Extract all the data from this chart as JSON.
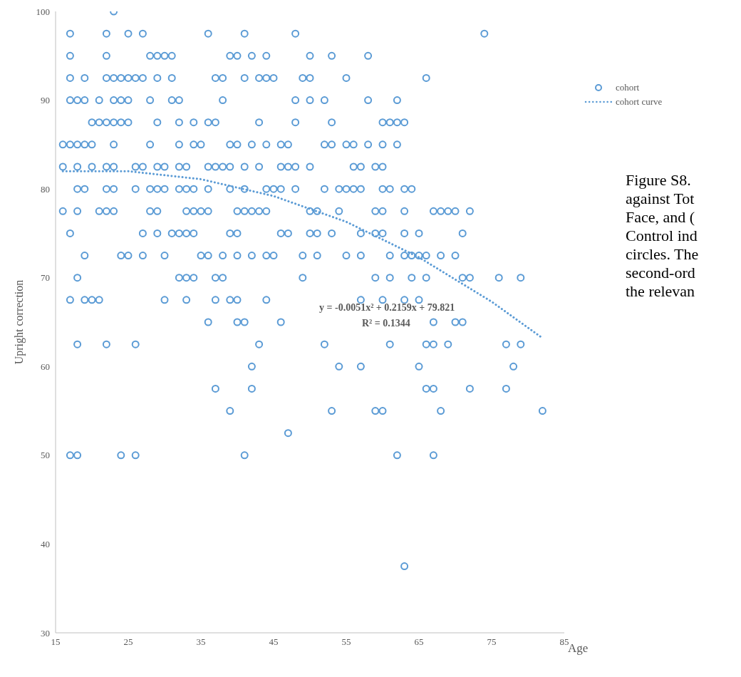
{
  "chart_data": {
    "type": "scatter",
    "xlabel": "Age",
    "ylabel": "Upright correction",
    "xlim": [
      15,
      85
    ],
    "xticks": [
      15,
      25,
      35,
      45,
      55,
      65,
      75,
      85
    ],
    "ylim": [
      30,
      100
    ],
    "yticks": [
      30,
      40,
      50,
      60,
      70,
      80,
      90,
      100
    ],
    "legend": "top right",
    "line_style": "dotted",
    "series": [
      {
        "name": "cohort",
        "marker": "circle",
        "color": "#5b9bd5",
        "x": [
          23,
          17,
          22,
          25,
          27,
          36,
          41,
          48,
          74,
          17,
          22,
          28,
          29,
          30,
          31,
          39,
          40,
          42,
          44,
          50,
          53,
          58,
          17,
          19,
          22,
          23,
          24,
          25,
          26,
          27,
          29,
          31,
          37,
          38,
          41,
          43,
          44,
          45,
          49,
          50,
          55,
          66,
          17,
          18,
          19,
          21,
          23,
          24,
          25,
          28,
          31,
          32,
          38,
          48,
          50,
          52,
          58,
          62,
          20,
          21,
          22,
          23,
          24,
          25,
          29,
          32,
          34,
          36,
          37,
          43,
          48,
          53,
          60,
          61,
          62,
          63,
          16,
          17,
          18,
          19,
          20,
          23,
          28,
          32,
          34,
          35,
          39,
          40,
          42,
          44,
          46,
          47,
          52,
          53,
          55,
          56,
          58,
          60,
          62,
          16,
          18,
          20,
          22,
          23,
          26,
          27,
          29,
          30,
          32,
          33,
          36,
          37,
          38,
          39,
          41,
          43,
          46,
          47,
          48,
          50,
          56,
          57,
          59,
          60,
          18,
          19,
          22,
          23,
          26,
          28,
          29,
          30,
          32,
          33,
          34,
          36,
          39,
          41,
          44,
          45,
          46,
          48,
          52,
          54,
          55,
          56,
          57,
          60,
          61,
          63,
          64,
          16,
          18,
          21,
          22,
          23,
          28,
          29,
          33,
          34,
          35,
          36,
          40,
          41,
          42,
          43,
          44,
          50,
          51,
          54,
          59,
          60,
          63,
          67,
          68,
          69,
          70,
          72,
          17,
          27,
          29,
          31,
          32,
          33,
          34,
          39,
          40,
          46,
          47,
          50,
          51,
          53,
          57,
          59,
          60,
          63,
          65,
          71,
          19,
          24,
          25,
          27,
          30,
          35,
          36,
          38,
          40,
          42,
          44,
          45,
          49,
          51,
          55,
          57,
          61,
          63,
          64,
          65,
          66,
          68,
          70,
          18,
          32,
          33,
          34,
          37,
          38,
          49,
          59,
          61,
          64,
          66,
          71,
          72,
          76,
          79,
          17,
          19,
          20,
          21,
          30,
          33,
          37,
          39,
          40,
          44,
          57,
          60,
          63,
          65,
          36,
          40,
          41,
          46,
          67,
          70,
          71,
          18,
          22,
          26,
          43,
          52,
          61,
          66,
          67,
          69,
          77,
          79,
          42,
          54,
          57,
          65,
          78,
          37,
          42,
          66,
          67,
          72,
          77,
          39,
          53,
          59,
          60,
          68,
          82,
          47,
          17,
          18,
          24,
          26,
          41,
          62,
          67,
          63
        ],
        "values": [
          100,
          97.5,
          97.5,
          97.5,
          97.5,
          97.5,
          97.5,
          97.5,
          97.5,
          95,
          95,
          95,
          95,
          95,
          95,
          95,
          95,
          95,
          95,
          95,
          95,
          95,
          92.5,
          92.5,
          92.5,
          92.5,
          92.5,
          92.5,
          92.5,
          92.5,
          92.5,
          92.5,
          92.5,
          92.5,
          92.5,
          92.5,
          92.5,
          92.5,
          92.5,
          92.5,
          92.5,
          92.5,
          90,
          90,
          90,
          90,
          90,
          90,
          90,
          90,
          90,
          90,
          90,
          90,
          90,
          90,
          90,
          90,
          87.5,
          87.5,
          87.5,
          87.5,
          87.5,
          87.5,
          87.5,
          87.5,
          87.5,
          87.5,
          87.5,
          87.5,
          87.5,
          87.5,
          87.5,
          87.5,
          87.5,
          87.5,
          85,
          85,
          85,
          85,
          85,
          85,
          85,
          85,
          85,
          85,
          85,
          85,
          85,
          85,
          85,
          85,
          85,
          85,
          85,
          85,
          85,
          85,
          85,
          82.5,
          82.5,
          82.5,
          82.5,
          82.5,
          82.5,
          82.5,
          82.5,
          82.5,
          82.5,
          82.5,
          82.5,
          82.5,
          82.5,
          82.5,
          82.5,
          82.5,
          82.5,
          82.5,
          82.5,
          82.5,
          82.5,
          82.5,
          82.5,
          82.5,
          80,
          80,
          80,
          80,
          80,
          80,
          80,
          80,
          80,
          80,
          80,
          80,
          80,
          80,
          80,
          80,
          80,
          80,
          80,
          80,
          80,
          80,
          80,
          80,
          80,
          80,
          80,
          77.5,
          77.5,
          77.5,
          77.5,
          77.5,
          77.5,
          77.5,
          77.5,
          77.5,
          77.5,
          77.5,
          77.5,
          77.5,
          77.5,
          77.5,
          77.5,
          77.5,
          77.5,
          77.5,
          77.5,
          77.5,
          77.5,
          77.5,
          77.5,
          77.5,
          77.5,
          77.5,
          75,
          75,
          75,
          75,
          75,
          75,
          75,
          75,
          75,
          75,
          75,
          75,
          75,
          75,
          75,
          75,
          75,
          75,
          75,
          75,
          72.5,
          72.5,
          72.5,
          72.5,
          72.5,
          72.5,
          72.5,
          72.5,
          72.5,
          72.5,
          72.5,
          72.5,
          72.5,
          72.5,
          72.5,
          72.5,
          72.5,
          72.5,
          72.5,
          72.5,
          72.5,
          72.5,
          72.5,
          70,
          70,
          70,
          70,
          70,
          70,
          70,
          70,
          70,
          70,
          70,
          70,
          70,
          70,
          70,
          67.5,
          67.5,
          67.5,
          67.5,
          67.5,
          67.5,
          67.5,
          67.5,
          67.5,
          67.5,
          67.5,
          67.5,
          67.5,
          67.5,
          65,
          65,
          65,
          65,
          65,
          65,
          65,
          62.5,
          62.5,
          62.5,
          62.5,
          62.5,
          62.5,
          62.5,
          62.5,
          62.5,
          62.5,
          62.5,
          60,
          60,
          60,
          60,
          60,
          57.5,
          57.5,
          57.5,
          57.5,
          57.5,
          57.5,
          55,
          55,
          55,
          55,
          55,
          55,
          52.5,
          50,
          50,
          50,
          50,
          50,
          50,
          50,
          37.5
        ]
      },
      {
        "name": "cohort curve",
        "type": "line",
        "marker": "none",
        "color": "#5b9bd5",
        "x": [
          16,
          25,
          35,
          45,
          55,
          65,
          75,
          82
        ],
        "values": [
          82.0,
          82.0,
          81.1,
          79.2,
          76.3,
          72.3,
          67.3,
          63.2
        ]
      }
    ],
    "annotations": [
      "y = -0.0051x² + 0.2159x + 79.821",
      "R² = 0.1344",
      "Figure S8.\nagainst Tot\nFace, and (\nControl ind\ncircles. The\nsecond-ord\nthe relevan"
    ]
  }
}
